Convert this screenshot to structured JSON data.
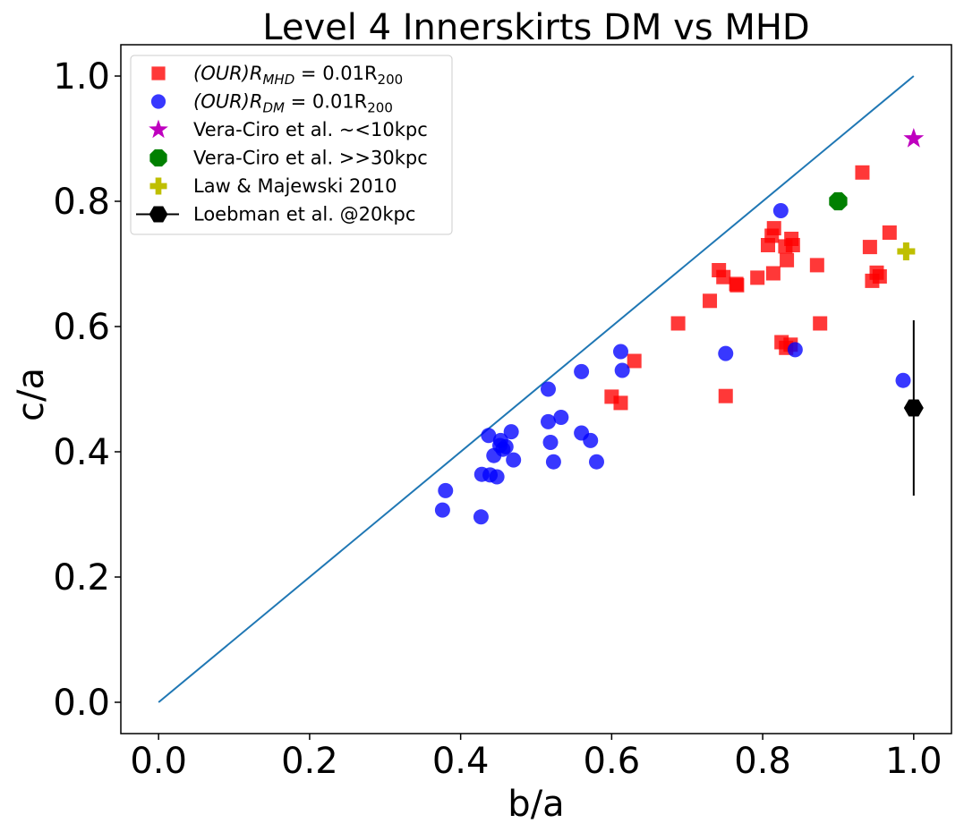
{
  "chart_data": {
    "type": "scatter",
    "title": "Level 4 Innerskirts DM vs MHD",
    "xlabel": "b/a",
    "ylabel": "c/a",
    "xlim": [
      -0.05,
      1.05
    ],
    "ylim": [
      -0.05,
      1.05
    ],
    "xticks": [
      0.0,
      0.2,
      0.4,
      0.6,
      0.8,
      1.0
    ],
    "yticks": [
      0.0,
      0.2,
      0.4,
      0.6,
      0.8,
      1.0
    ],
    "xtick_labels": [
      "0.0",
      "0.2",
      "0.4",
      "0.6",
      "0.8",
      "1.0"
    ],
    "ytick_labels": [
      "0.0",
      "0.2",
      "0.4",
      "0.6",
      "0.8",
      "1.0"
    ],
    "grid": false,
    "legend_position": "top-left",
    "reference_line": {
      "x": [
        0.0,
        1.0
      ],
      "y": [
        0.0,
        1.0
      ],
      "color": "#1f77b4"
    },
    "series": [
      {
        "name": "(OUR)R_MHD = 0.01R_200",
        "legend_parts": {
          "pre": "(OUR)R",
          "sub1": "MHD",
          "mid": " = 0.01R",
          "sub2": "200"
        },
        "marker": "square",
        "color": "#ff0000",
        "points": [
          [
            0.932,
            0.846
          ],
          [
            0.815,
            0.757
          ],
          [
            0.812,
            0.745
          ],
          [
            0.807,
            0.73
          ],
          [
            0.838,
            0.74
          ],
          [
            0.84,
            0.73
          ],
          [
            0.83,
            0.728
          ],
          [
            0.832,
            0.706
          ],
          [
            0.872,
            0.698
          ],
          [
            0.814,
            0.685
          ],
          [
            0.793,
            0.678
          ],
          [
            0.742,
            0.69
          ],
          [
            0.748,
            0.679
          ],
          [
            0.765,
            0.668
          ],
          [
            0.766,
            0.666
          ],
          [
            0.73,
            0.641
          ],
          [
            0.688,
            0.605
          ],
          [
            0.876,
            0.605
          ],
          [
            0.942,
            0.727
          ],
          [
            0.968,
            0.75
          ],
          [
            0.951,
            0.686
          ],
          [
            0.955,
            0.68
          ],
          [
            0.945,
            0.673
          ],
          [
            0.825,
            0.575
          ],
          [
            0.837,
            0.571
          ],
          [
            0.831,
            0.566
          ],
          [
            0.63,
            0.545
          ],
          [
            0.6,
            0.488
          ],
          [
            0.612,
            0.478
          ],
          [
            0.751,
            0.489
          ]
        ]
      },
      {
        "name": "(OUR)R_DM = 0.01R_200",
        "legend_parts": {
          "pre": "(OUR)R",
          "sub1": "DM",
          "mid": " = 0.01R",
          "sub2": "200"
        },
        "marker": "circle",
        "color": "#0000ff",
        "points": [
          [
            0.824,
            0.785
          ],
          [
            0.612,
            0.56
          ],
          [
            0.751,
            0.557
          ],
          [
            0.843,
            0.563
          ],
          [
            0.986,
            0.514
          ],
          [
            0.56,
            0.528
          ],
          [
            0.614,
            0.53
          ],
          [
            0.516,
            0.5
          ],
          [
            0.533,
            0.455
          ],
          [
            0.516,
            0.448
          ],
          [
            0.56,
            0.43
          ],
          [
            0.572,
            0.418
          ],
          [
            0.519,
            0.415
          ],
          [
            0.523,
            0.384
          ],
          [
            0.58,
            0.384
          ],
          [
            0.437,
            0.426
          ],
          [
            0.467,
            0.432
          ],
          [
            0.453,
            0.418
          ],
          [
            0.452,
            0.41
          ],
          [
            0.46,
            0.408
          ],
          [
            0.456,
            0.404
          ],
          [
            0.444,
            0.394
          ],
          [
            0.47,
            0.387
          ],
          [
            0.428,
            0.364
          ],
          [
            0.439,
            0.363
          ],
          [
            0.448,
            0.36
          ],
          [
            0.38,
            0.338
          ],
          [
            0.376,
            0.307
          ],
          [
            0.427,
            0.296
          ]
        ]
      },
      {
        "name": "Vera-Ciro et al. ~<10kpc",
        "marker": "star",
        "color": "#bf00bf",
        "points": [
          [
            1.0,
            0.9
          ]
        ]
      },
      {
        "name": "Vera-Ciro et al. >>30kpc",
        "marker": "octagon",
        "color": "#008000",
        "points": [
          [
            0.9,
            0.8
          ]
        ]
      },
      {
        "name": "Law & Majewski 2010",
        "marker": "plus",
        "color": "#bfbf00",
        "points": [
          [
            0.99,
            0.72
          ]
        ]
      },
      {
        "name": "Loebman et al. @20kpc",
        "marker": "hexagon-errorbar",
        "color": "#000000",
        "points": [
          [
            1.0,
            0.47
          ]
        ],
        "yerr": [
          0.14
        ]
      }
    ]
  }
}
